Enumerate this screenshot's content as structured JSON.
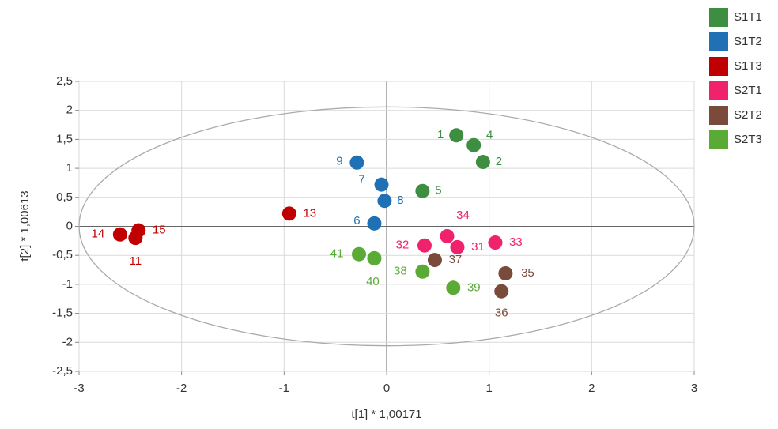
{
  "chart_data": {
    "type": "scatter",
    "xlabel": "t[1] * 1,00171",
    "ylabel": "t[2] * 1,00613",
    "xlim": [
      -3,
      3
    ],
    "xticks": [
      -3,
      -2,
      -1,
      0,
      1,
      2,
      3
    ],
    "ylim": [
      -2.5,
      2.5
    ],
    "yticks": [
      {
        "value": -2.5,
        "label": "-2,5"
      },
      -2,
      {
        "value": -1.5,
        "label": "-1,5"
      },
      -1,
      {
        "value": -0.5,
        "label": "-0,5"
      },
      0,
      {
        "value": 0.5,
        "label": "0,5"
      },
      1,
      {
        "value": 1.5,
        "label": "1,5"
      },
      2,
      {
        "value": 2.5,
        "label": "2,5"
      }
    ],
    "grid": true,
    "legend": "right",
    "ellipse": {
      "rx": 3,
      "ry": 2.06
    },
    "series": [
      {
        "name": "S1T1",
        "color": "#3e8e41",
        "labels": [
          "1",
          "4",
          "2",
          "5"
        ],
        "x": [
          0.68,
          0.85,
          0.94,
          0.35
        ],
        "values": [
          1.57,
          1.4,
          1.11,
          0.61
        ]
      },
      {
        "name": "S1T2",
        "color": "#1f70b5",
        "labels": [
          "9",
          "7",
          "8",
          "6"
        ],
        "x": [
          -0.29,
          -0.05,
          -0.02,
          -0.12
        ],
        "values": [
          1.1,
          0.72,
          0.44,
          0.05
        ]
      },
      {
        "name": "S1T3",
        "color": "#c00000",
        "labels": [
          "13",
          "14",
          "15",
          "11"
        ],
        "x": [
          -0.95,
          -2.6,
          -2.42,
          -2.45
        ],
        "values": [
          0.22,
          -0.14,
          -0.07,
          -0.2
        ]
      },
      {
        "name": "S2T1",
        "color": "#f0226c",
        "labels": [
          "32",
          "34",
          "31",
          "33"
        ],
        "x": [
          0.37,
          0.59,
          0.69,
          1.06
        ],
        "values": [
          -0.33,
          -0.17,
          -0.36,
          -0.28
        ]
      },
      {
        "name": "S2T2",
        "color": "#7a4b3a",
        "labels": [
          "37",
          "35",
          "36"
        ],
        "x": [
          0.47,
          1.16,
          1.12
        ],
        "values": [
          -0.58,
          -0.81,
          -1.12
        ]
      },
      {
        "name": "S2T3",
        "color": "#5aab36",
        "labels": [
          "41",
          "40",
          "38",
          "39"
        ],
        "x": [
          -0.27,
          -0.12,
          0.35,
          0.65
        ],
        "values": [
          -0.48,
          -0.55,
          -0.78,
          -1.06
        ]
      }
    ]
  }
}
